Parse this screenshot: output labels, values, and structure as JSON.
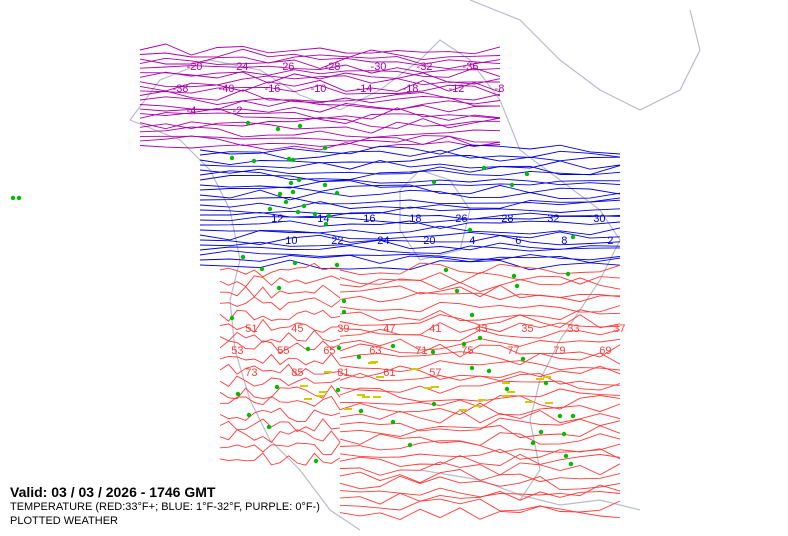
{
  "legend": {
    "valid": "Valid: 03 / 03 / 2026  -  1746 GMT",
    "temperature": "TEMPERATURE (RED:33°F+; BLUE: 1°F-32°F, PURPLE: 0°F-)",
    "plotted": "PLOTTED WEATHER"
  },
  "colors": {
    "warm": "#ff3b3b",
    "cold": "#0000dd",
    "frigid": "#aa00aa",
    "land_outline": "#b8bccc",
    "precip_rain": "#00bb00",
    "precip_snow": "#00cc44",
    "fog": "#cccc00",
    "text_grey": "#666666"
  },
  "contour_labels": {
    "warm": [
      "51",
      "45",
      "39",
      "47",
      "41",
      "43",
      "35",
      "33",
      "37",
      "53",
      "55",
      "65",
      "63",
      "71",
      "75",
      "77",
      "79",
      "69",
      "73",
      "85",
      "81",
      "61",
      "57"
    ],
    "cold": [
      "12",
      "14",
      "16",
      "18",
      "26",
      "28",
      "32",
      "30",
      "10",
      "22",
      "24",
      "20",
      "4",
      "6",
      "8",
      "2"
    ],
    "frigid": [
      "-20",
      "-24",
      "-26",
      "-28",
      "-30",
      "-32",
      "-36",
      "-38",
      "-40",
      "-16",
      "-10",
      "-14",
      "-18",
      "-12",
      "-8",
      "-4",
      "-2"
    ]
  },
  "weather_symbols": [
    "rain-dots",
    "snow-asterisks",
    "fog-lines",
    "drizzle",
    "thunder-question"
  ]
}
